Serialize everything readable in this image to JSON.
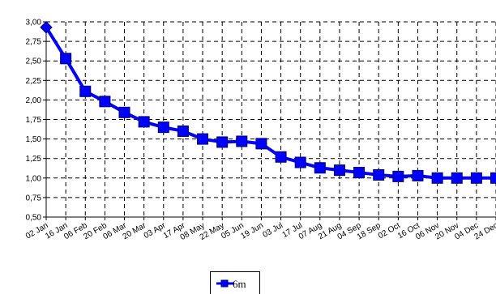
{
  "chart_data": {
    "type": "line",
    "title": "",
    "xlabel": "",
    "ylabel": "",
    "categories": [
      "02 Jan",
      "16 Jan",
      "06 Feb",
      "20 Feb",
      "06 Mar",
      "20 Mar",
      "03 Apr",
      "17 Apr",
      "08 May",
      "22 May",
      "05 Jun",
      "19 Jun",
      "03 Jul",
      "17 Jul",
      "07 Aug",
      "21 Aug",
      "04 Sep",
      "18 Sep",
      "02 Oct",
      "16 Oct",
      "06 Nov",
      "20 Nov",
      "04 Dec",
      "24 Dec"
    ],
    "ylim": [
      0.5,
      3.0
    ],
    "yticks": [
      "0,50",
      "0,75",
      "1,00",
      "1,25",
      "1,50",
      "1,75",
      "2,00",
      "2,25",
      "2,50",
      "2,75",
      "3,00"
    ],
    "grid": true,
    "legend_position": "bottom",
    "series": [
      {
        "name": "6m",
        "color": "#0000ff",
        "values": [
          2.93,
          2.53,
          2.11,
          1.98,
          1.84,
          1.72,
          1.65,
          1.6,
          1.5,
          1.46,
          1.47,
          1.44,
          1.27,
          1.2,
          1.13,
          1.1,
          1.07,
          1.04,
          1.02,
          1.03,
          1.0,
          1.0,
          1.0,
          1.0
        ]
      }
    ]
  },
  "legend": {
    "label": "6m"
  }
}
